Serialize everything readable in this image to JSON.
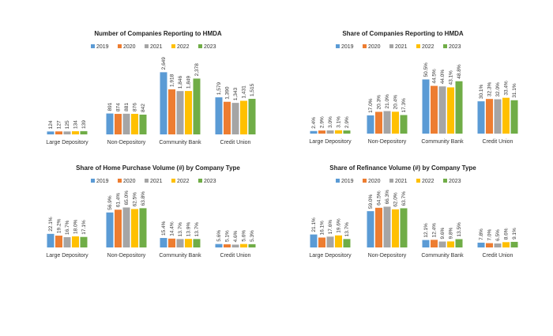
{
  "chart_data": [
    {
      "type": "bar",
      "title": "Number of Companies Reporting to HMDA",
      "categories": [
        "Large Depository",
        "Non-Depository",
        "Community Bank",
        "Credit Union"
      ],
      "series": [
        {
          "name": "2019",
          "values": [
            124,
            891,
            2649,
            1579
          ],
          "labels": [
            "124",
            "891",
            "2,649",
            "1,579"
          ]
        },
        {
          "name": "2020",
          "values": [
            127,
            874,
            1918,
            1390
          ],
          "labels": [
            "127",
            "874",
            "1,918",
            "1,390"
          ]
        },
        {
          "name": "2021",
          "values": [
            125,
            881,
            1846,
            1343
          ],
          "labels": [
            "125",
            "881",
            "1,846",
            "1,343"
          ]
        },
        {
          "name": "2022",
          "values": [
            134,
            876,
            1849,
            1431
          ],
          "labels": [
            "134",
            "876",
            "1,849",
            "1,431"
          ]
        },
        {
          "name": "2023",
          "values": [
            139,
            842,
            2378,
            1515
          ],
          "labels": [
            "139",
            "842",
            "2,378",
            "1,515"
          ]
        }
      ],
      "ylim": [
        0,
        3200
      ],
      "grid": false,
      "legend": "top"
    },
    {
      "type": "bar",
      "title": "Share of Companies Reporting to HMDA",
      "categories": [
        "Large Depository",
        "Non-Depository",
        "Community Bank",
        "Credit Union"
      ],
      "series": [
        {
          "name": "2019",
          "values": [
            2.4,
            17.0,
            50.5,
            30.1
          ],
          "labels": [
            "2.4%",
            "17.0%",
            "50.5%",
            "30.1%"
          ]
        },
        {
          "name": "2020",
          "values": [
            2.9,
            20.3,
            44.5,
            32.3
          ],
          "labels": [
            "2.9%",
            "20.3%",
            "44.5%",
            "32.3%"
          ]
        },
        {
          "name": "2021",
          "values": [
            3.0,
            21.0,
            44.0,
            32.0
          ],
          "labels": [
            "3.0%",
            "21.0%",
            "44.0%",
            "32.0%"
          ]
        },
        {
          "name": "2022",
          "values": [
            3.1,
            20.4,
            43.1,
            33.4
          ],
          "labels": [
            "3.1%",
            "20.4%",
            "43.1%",
            "33.4%"
          ]
        },
        {
          "name": "2023",
          "values": [
            2.9,
            17.3,
            48.8,
            31.1
          ],
          "labels": [
            "2.9%",
            "17.3%",
            "48.8%",
            "31.1%"
          ]
        }
      ],
      "ylim": [
        0,
        70
      ],
      "grid": false,
      "legend": "top"
    },
    {
      "type": "bar",
      "title": "Share of Home Purchase Volume (#) by Company Type",
      "categories": [
        "Large Depository",
        "Non-Depository",
        "Community Bank",
        "Credit Union"
      ],
      "series": [
        {
          "name": "2019",
          "values": [
            22.1,
            56.9,
            15.4,
            5.6
          ],
          "labels": [
            "22.1%",
            "56.9%",
            "15.4%",
            "5.6%"
          ]
        },
        {
          "name": "2020",
          "values": [
            19.2,
            61.4,
            14.4,
            5.1
          ],
          "labels": [
            "19.2%",
            "61.4%",
            "14.4%",
            "5.1%"
          ]
        },
        {
          "name": "2021",
          "values": [
            16.7,
            65.0,
            13.7,
            4.6
          ],
          "labels": [
            "16.7%",
            "65.0%",
            "13.7%",
            "4.6%"
          ]
        },
        {
          "name": "2022",
          "values": [
            18.0,
            62.5,
            13.9,
            5.6
          ],
          "labels": [
            "18.0%",
            "62.5%",
            "13.9%",
            "5.6%"
          ]
        },
        {
          "name": "2023",
          "values": [
            17.1,
            63.8,
            13.7,
            5.3
          ],
          "labels": [
            "17.1%",
            "63.8%",
            "13.7%",
            "5.3%"
          ]
        }
      ],
      "ylim": [
        0,
        90
      ],
      "grid": false,
      "legend": "top"
    },
    {
      "type": "bar",
      "title": "Share of Refinance Volume (#) by Company Type",
      "categories": [
        "Large Depository",
        "Non-Depository",
        "Community Bank",
        "Credit Union"
      ],
      "series": [
        {
          "name": "2019",
          "values": [
            21.1,
            59.0,
            12.1,
            7.8
          ],
          "labels": [
            "21.1%",
            "59.0%",
            "12.1%",
            "7.8%"
          ]
        },
        {
          "name": "2020",
          "values": [
            16.1,
            64.5,
            12.4,
            7.0
          ],
          "labels": [
            "16.1%",
            "64.5%",
            "12.4%",
            "7.0%"
          ]
        },
        {
          "name": "2021",
          "values": [
            17.6,
            66.3,
            9.6,
            6.5
          ],
          "labels": [
            "17.6%",
            "66.3%",
            "9.6%",
            "6.5%"
          ]
        },
        {
          "name": "2022",
          "values": [
            19.6,
            62.0,
            9.8,
            8.6
          ],
          "labels": [
            "19.6%",
            "62.0%",
            "9.8%",
            "8.6%"
          ]
        },
        {
          "name": "2023",
          "values": [
            13.7,
            63.7,
            13.5,
            9.1
          ],
          "labels": [
            "13.7%",
            "63.7%",
            "13.5%",
            "9.1%"
          ]
        }
      ],
      "ylim": [
        0,
        90
      ],
      "grid": false,
      "legend": "top"
    }
  ],
  "colors": {
    "2019": "#5b9bd5",
    "2020": "#ed7d31",
    "2021": "#a5a5a5",
    "2022": "#ffc000",
    "2023": "#70ad47"
  }
}
